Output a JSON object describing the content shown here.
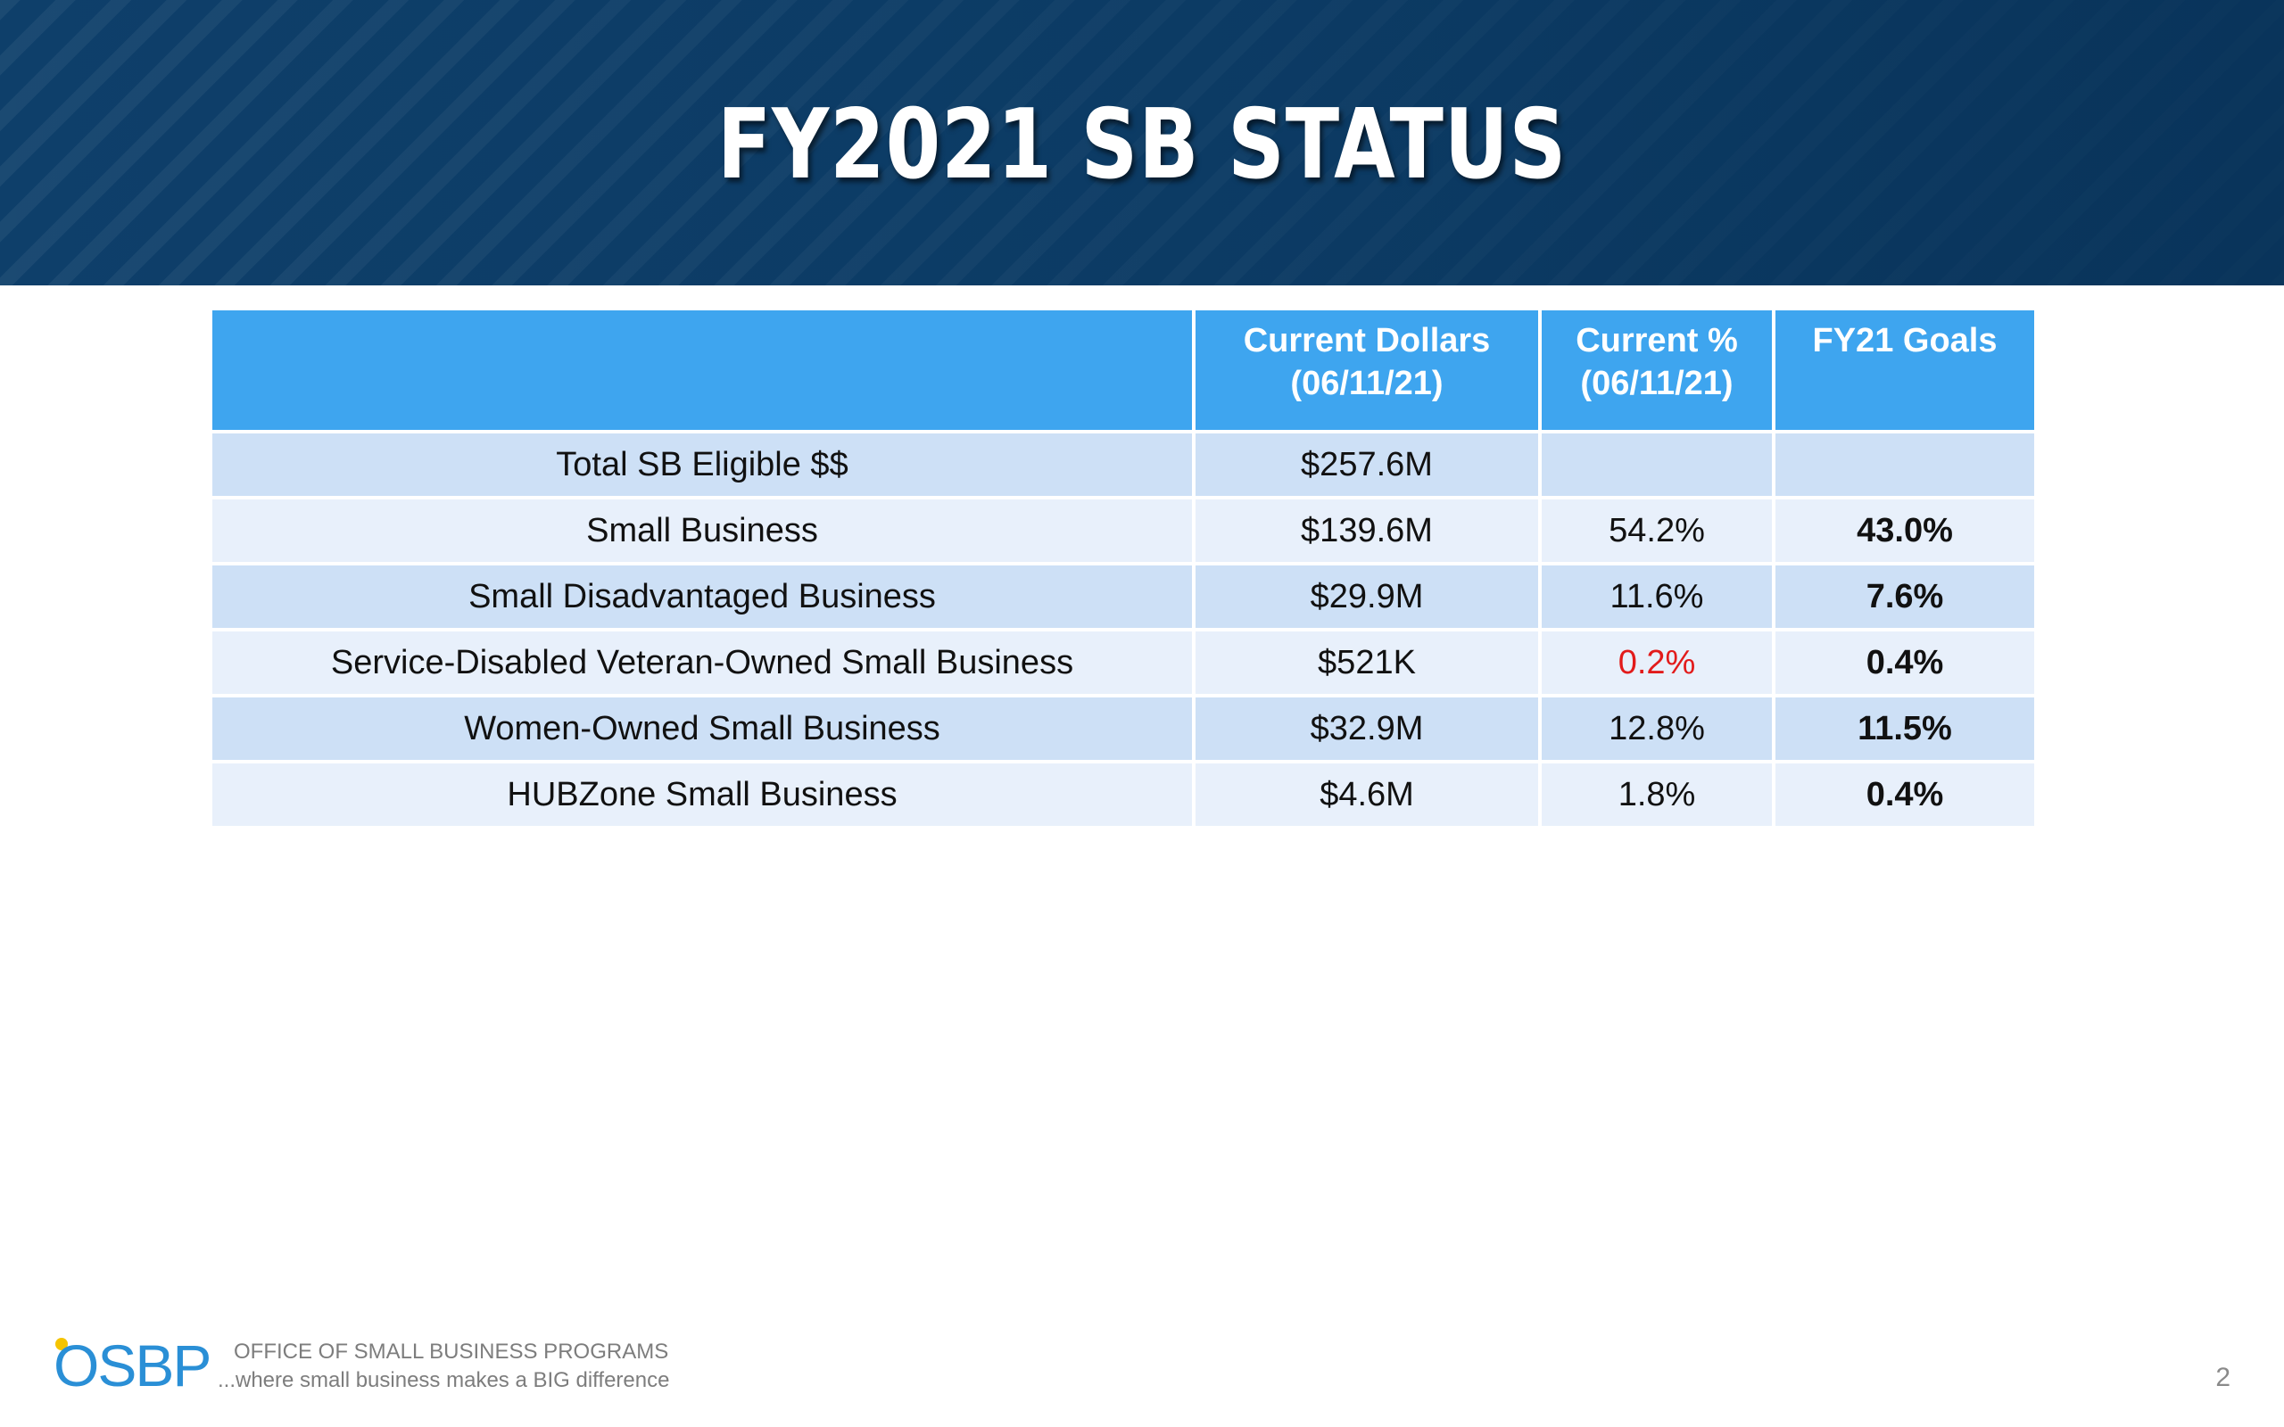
{
  "slide": {
    "title": "FY2021 SB STATUS",
    "page_number": "2"
  },
  "table": {
    "headers": [
      "",
      "Current Dollars\n(06/11/21)",
      "Current %\n(06/11/21)",
      "FY21 Goals"
    ],
    "header_lines": {
      "dollars_1": "Current Dollars",
      "dollars_2": "(06/11/21)",
      "percent_1": "Current %",
      "percent_2": "(06/11/21)",
      "goals": "FY21 Goals"
    },
    "rows": [
      {
        "category": "Total SB Eligible $$",
        "dollars": "$257.6M",
        "percent": "",
        "goal": ""
      },
      {
        "category": "Small Business",
        "dollars": "$139.6M",
        "percent": "54.2%",
        "goal": "43.0%"
      },
      {
        "category": "Small Disadvantaged Business",
        "dollars": "$29.9M",
        "percent": "11.6%",
        "goal": "7.6%"
      },
      {
        "category": "Service-Disabled Veteran-Owned Small Business",
        "dollars": "$521K",
        "percent": "0.2%",
        "goal": "0.4%"
      },
      {
        "category": "Women-Owned Small Business",
        "dollars": "$32.9M",
        "percent": "12.8%",
        "goal": "11.5%"
      },
      {
        "category": "HUBZone Small Business",
        "dollars": "$4.6M",
        "percent": "1.8%",
        "goal": "0.4%"
      }
    ]
  },
  "footer": {
    "logo_text": "OSBP",
    "org_name": "OFFICE OF SMALL BUSINESS PROGRAMS",
    "tagline": "...where small business makes a BIG difference"
  },
  "colors": {
    "banner": "#0e3f6a",
    "header_fill": "#3ea5ef",
    "row_dark": "#cde0f6",
    "row_light": "#e8f0fb",
    "below_goal": "#e21b1b"
  }
}
